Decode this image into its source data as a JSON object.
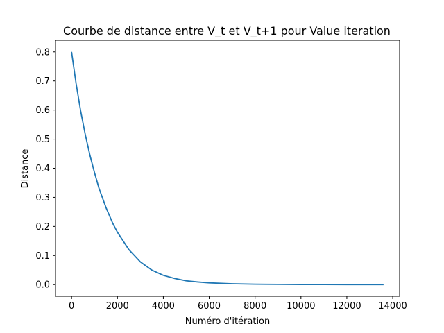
{
  "chart_data": {
    "type": "line",
    "title": "Courbe de distance entre V_t et V_t+1 pour Value iteration",
    "xlabel": "Numéro d'itération",
    "ylabel": "Distance",
    "xlim": [
      -700,
      14300
    ],
    "ylim": [
      -0.04,
      0.84
    ],
    "xticks": [
      0,
      2000,
      4000,
      6000,
      8000,
      10000,
      12000,
      14000
    ],
    "xtick_labels": [
      "0",
      "2000",
      "4000",
      "6000",
      "8000",
      "10000",
      "12000",
      "14000"
    ],
    "yticks": [
      0.0,
      0.1,
      0.2,
      0.3,
      0.4,
      0.5,
      0.6,
      0.7,
      0.8
    ],
    "ytick_labels": [
      "0.0",
      "0.1",
      "0.2",
      "0.3",
      "0.4",
      "0.5",
      "0.6",
      "0.7",
      "0.8"
    ],
    "grid": false,
    "legend": "none",
    "series": [
      {
        "color": "#1f77b4",
        "x": [
          0,
          200,
          400,
          600,
          800,
          1000,
          1200,
          1500,
          1800,
          2000,
          2500,
          3000,
          3500,
          4000,
          4500,
          5000,
          5500,
          6000,
          7000,
          8000,
          9000,
          10000,
          11000,
          12000,
          13000,
          13600
        ],
        "y": [
          0.8,
          0.69,
          0.595,
          0.515,
          0.445,
          0.385,
          0.33,
          0.265,
          0.21,
          0.18,
          0.12,
          0.078,
          0.05,
          0.032,
          0.021,
          0.013,
          0.009,
          0.006,
          0.003,
          0.0015,
          0.0008,
          0.0004,
          0.0002,
          0.0001,
          5e-05,
          3e-05
        ]
      }
    ]
  }
}
